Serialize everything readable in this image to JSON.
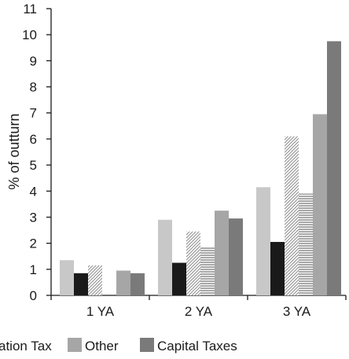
{
  "chart_data": {
    "type": "bar",
    "ylabel": "% of outturn",
    "ylim": [
      0,
      11
    ],
    "yticks": [
      "0",
      "1",
      "2",
      "3",
      "4",
      "5",
      "6",
      "7",
      "8",
      "9",
      "10",
      "11"
    ],
    "categories": [
      "1 YA",
      "2 YA",
      "3 YA"
    ],
    "grid": false,
    "legend_position": "bottom",
    "series": [
      {
        "name": "",
        "color": "#c8c8c8",
        "pattern": "solid",
        "values": [
          1.35,
          2.9,
          4.15
        ]
      },
      {
        "name": "",
        "color": "#1a1a1a",
        "pattern": "solid",
        "values": [
          0.85,
          1.25,
          2.05
        ]
      },
      {
        "name": "",
        "color": "#aaaaaa",
        "pattern": "diagonal-hatch",
        "values": [
          1.15,
          2.45,
          6.1
        ]
      },
      {
        "name": "ation Tax",
        "color": "#9a9a9a",
        "pattern": "horizontal-lines",
        "values": [
          0,
          1.85,
          3.9
        ]
      },
      {
        "name": "Other",
        "color": "#a6a6a6",
        "pattern": "solid",
        "values": [
          0.95,
          3.25,
          6.95
        ]
      },
      {
        "name": "Capital Taxes",
        "color": "#7a7a7a",
        "pattern": "solid",
        "values": [
          0.85,
          2.95,
          9.75
        ]
      }
    ]
  }
}
